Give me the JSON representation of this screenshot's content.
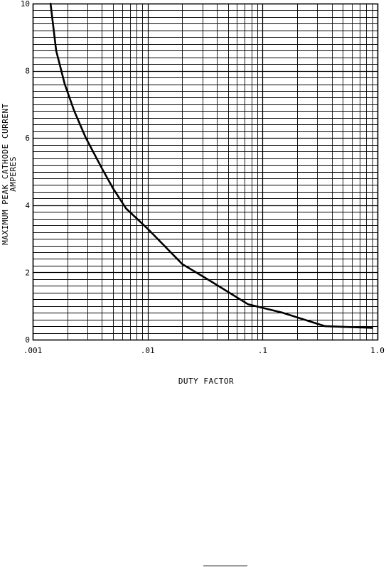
{
  "chart_data": {
    "type": "line",
    "xscale": "log",
    "xlim": [
      0.001,
      1.0
    ],
    "ylim": [
      0,
      10
    ],
    "xticks": [
      0.001,
      0.01,
      0.1,
      1.0
    ],
    "xtick_labels": [
      ".001",
      ".01",
      ".1",
      "1.0"
    ],
    "yticks": [
      0,
      2,
      4,
      6,
      8,
      10
    ],
    "ytick_labels": [
      "0",
      "2",
      "4",
      "6",
      "8",
      "10"
    ],
    "ylabel_lines": [
      "MAXIMUM PEAK CATHODE CURRENT",
      "AMPERES"
    ],
    "xlabel": "DUTY FACTOR",
    "grid": true,
    "series": [
      {
        "x": [
          0.00143,
          0.0016,
          0.0019,
          0.0023,
          0.0029,
          0.004,
          0.005,
          0.0065,
          0.01,
          0.02,
          0.035,
          0.075,
          0.15,
          0.35,
          0.9
        ],
        "y": [
          10.0,
          8.6,
          7.6,
          6.8,
          6.0,
          5.1,
          4.5,
          3.9,
          3.3,
          2.25,
          1.75,
          1.05,
          0.8,
          0.4,
          0.35
        ]
      }
    ]
  }
}
